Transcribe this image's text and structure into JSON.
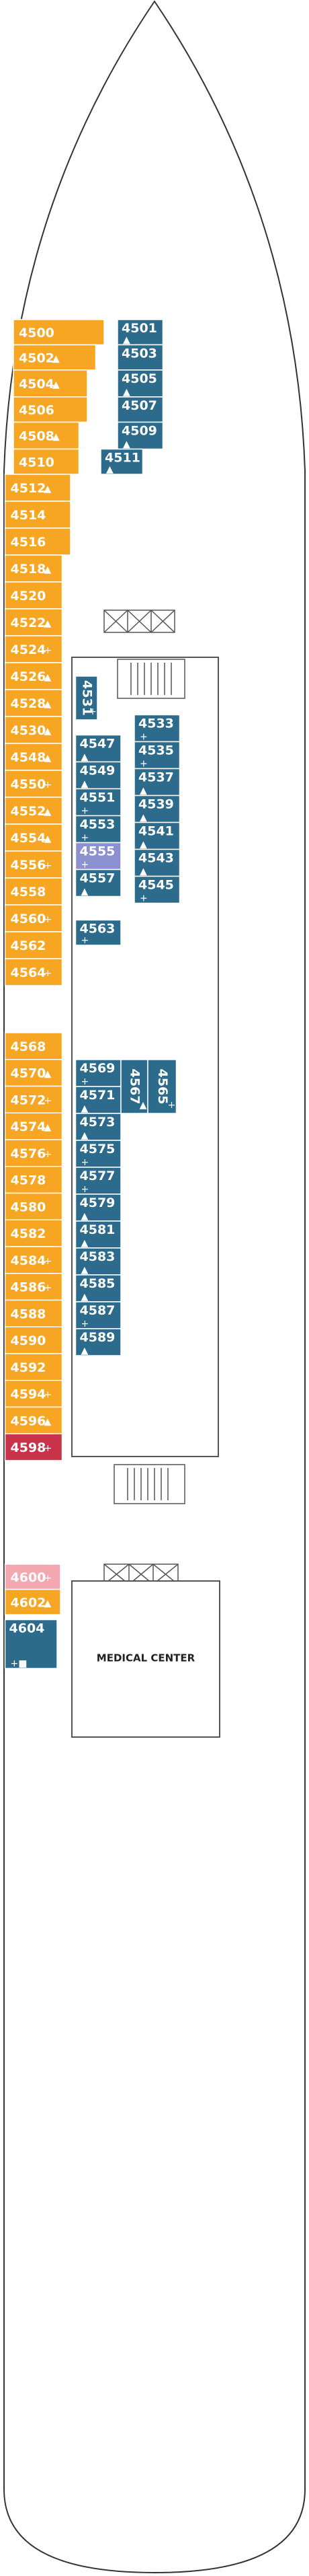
{
  "cabins": [
    {
      "label": "4500",
      "icon": "",
      "color": "#f6a623"
    },
    {
      "label": "4502",
      "icon": "▲",
      "color": "#f6a623"
    },
    {
      "label": "4504",
      "icon": "▲",
      "color": "#f6a623"
    },
    {
      "label": "4506",
      "icon": "",
      "color": "#f6a623"
    },
    {
      "label": "4508",
      "icon": "▲",
      "color": "#f6a623"
    },
    {
      "label": "4510",
      "icon": "",
      "color": "#f6a623"
    },
    {
      "label": "4512",
      "icon": "▲",
      "color": "#f6a623"
    },
    {
      "label": "4514",
      "icon": "",
      "color": "#f6a623"
    },
    {
      "label": "4516",
      "icon": "",
      "color": "#f6a623"
    },
    {
      "label": "4518",
      "icon": "▲",
      "color": "#f6a623"
    },
    {
      "label": "4520",
      "icon": "",
      "color": "#f6a623"
    },
    {
      "label": "4522",
      "icon": "▲",
      "color": "#f6a623"
    },
    {
      "label": "4524",
      "icon": "+",
      "color": "#f6a623"
    },
    {
      "label": "4526",
      "icon": "▲",
      "color": "#f6a623"
    },
    {
      "label": "4528",
      "icon": "▲",
      "color": "#f6a623"
    },
    {
      "label": "4530",
      "icon": "▲",
      "color": "#f6a623"
    },
    {
      "label": "4548",
      "icon": "▲",
      "color": "#f6a623"
    },
    {
      "label": "4550",
      "icon": "+",
      "color": "#f6a623"
    },
    {
      "label": "4552",
      "icon": "▲",
      "color": "#f6a623"
    },
    {
      "label": "4554",
      "icon": "▲",
      "color": "#f6a623"
    },
    {
      "label": "4556",
      "icon": "+",
      "color": "#f6a623"
    },
    {
      "label": "4558",
      "icon": "",
      "color": "#f6a623"
    },
    {
      "label": "4560",
      "icon": "+",
      "color": "#f6a623"
    },
    {
      "label": "4562",
      "icon": "",
      "color": "#f6a623"
    },
    {
      "label": "4564",
      "icon": "+",
      "color": "#f6a623"
    },
    {
      "label": "4568",
      "icon": "",
      "color": "#f6a623"
    },
    {
      "label": "4570",
      "icon": "▲",
      "color": "#f6a623"
    },
    {
      "label": "4572",
      "icon": "+",
      "color": "#f6a623"
    },
    {
      "label": "4574",
      "icon": "▲",
      "color": "#f6a623"
    },
    {
      "label": "4576",
      "icon": "+",
      "color": "#f6a623"
    },
    {
      "label": "4578",
      "icon": "",
      "color": "#f6a623"
    },
    {
      "label": "4580",
      "icon": "",
      "color": "#f6a623"
    },
    {
      "label": "4582",
      "icon": "",
      "color": "#f6a623"
    },
    {
      "label": "4584",
      "icon": "+",
      "color": "#f6a623"
    },
    {
      "label": "4586",
      "icon": "+",
      "color": "#f6a623"
    },
    {
      "label": "4588",
      "icon": "",
      "color": "#f6a623"
    },
    {
      "label": "4590",
      "icon": "",
      "color": "#f6a623"
    },
    {
      "label": "4592",
      "icon": "",
      "color": "#f6a623"
    },
    {
      "label": "4594",
      "icon": "+",
      "color": "#f6a623"
    },
    {
      "label": "4596",
      "icon": "▲",
      "color": "#f6a623"
    },
    {
      "label": "4598",
      "icon": "+",
      "color": "#c8334a"
    },
    {
      "label": "4600",
      "icon": "+",
      "color": "#f2a7b1"
    },
    {
      "label": "4602",
      "icon": "▲",
      "color": "#f6a623"
    },
    {
      "label": "4604",
      "icon": "+■",
      "color": "#2d6b8c"
    },
    {
      "label": "4501",
      "icon": "▲",
      "color": "#2d6b8c"
    },
    {
      "label": "4503",
      "icon": "",
      "color": "#2d6b8c"
    },
    {
      "label": "4505",
      "icon": "▲",
      "color": "#2d6b8c"
    },
    {
      "label": "4507",
      "icon": "",
      "color": "#2d6b8c"
    },
    {
      "label": "4509",
      "icon": "▲",
      "color": "#2d6b8c"
    },
    {
      "label": "4511",
      "icon": "▲",
      "color": "#2d6b8c"
    },
    {
      "label": "4531",
      "icon": "+",
      "color": "#2d6b8c"
    },
    {
      "label": "4547",
      "icon": "▲",
      "color": "#2d6b8c"
    },
    {
      "label": "4549",
      "icon": "▲",
      "color": "#2d6b8c"
    },
    {
      "label": "4551",
      "icon": "+",
      "color": "#2d6b8c"
    },
    {
      "label": "4553",
      "icon": "+",
      "color": "#2d6b8c"
    },
    {
      "label": "4555",
      "icon": "+",
      "color": "#8d90d0"
    },
    {
      "label": "4557",
      "icon": "▲",
      "color": "#2d6b8c"
    },
    {
      "label": "4533",
      "icon": "+",
      "color": "#2d6b8c"
    },
    {
      "label": "4535",
      "icon": "+",
      "color": "#2d6b8c"
    },
    {
      "label": "4537",
      "icon": "▲",
      "color": "#2d6b8c"
    },
    {
      "label": "4539",
      "icon": "▲",
      "color": "#2d6b8c"
    },
    {
      "label": "4541",
      "icon": "▲",
      "color": "#2d6b8c"
    },
    {
      "label": "4543",
      "icon": "▲",
      "color": "#2d6b8c"
    },
    {
      "label": "4545",
      "icon": "+",
      "color": "#2d6b8c"
    },
    {
      "label": "4563",
      "icon": "+",
      "color": "#2d6b8c"
    },
    {
      "label": "4569",
      "icon": "+",
      "color": "#2d6b8c"
    },
    {
      "label": "4571",
      "icon": "▲",
      "color": "#2d6b8c"
    },
    {
      "label": "4567",
      "icon": "▲",
      "color": "#2d6b8c"
    },
    {
      "label": "4565",
      "icon": "+",
      "color": "#2d6b8c"
    },
    {
      "label": "4573",
      "icon": "▲",
      "color": "#2d6b8c"
    },
    {
      "label": "4575",
      "icon": "+",
      "color": "#2d6b8c"
    },
    {
      "label": "4577",
      "icon": "+",
      "color": "#2d6b8c"
    },
    {
      "label": "4579",
      "icon": "▲",
      "color": "#2d6b8c"
    },
    {
      "label": "4581",
      "icon": "▲",
      "color": "#2d6b8c"
    },
    {
      "label": "4583",
      "icon": "▲",
      "color": "#2d6b8c"
    },
    {
      "label": "4585",
      "icon": "▲",
      "color": "#2d6b8c"
    },
    {
      "label": "4587",
      "icon": "+",
      "color": "#2d6b8c"
    },
    {
      "label": "4589",
      "icon": "▲",
      "color": "#2d6b8c"
    }
  ],
  "medical_center": "MEDICAL CENTER"
}
